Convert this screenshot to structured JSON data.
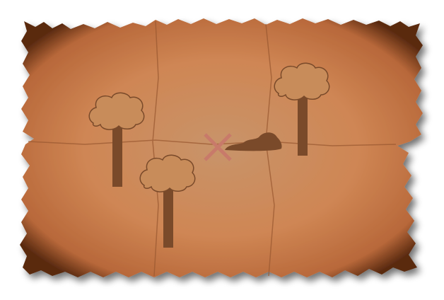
{
  "image": {
    "subject": "treasure-map",
    "colors": {
      "background": "#ffffff",
      "parchment_center": "#c8946a",
      "parchment_mid": "#cf8654",
      "parchment_edge": "#5a2a10",
      "fold_line": "#9b5a32",
      "shadow": "#9a9a9a",
      "tree_fill": "#c88c5a",
      "tree_stroke": "#7a4a2a",
      "trunk": "#7a4a2a",
      "rock": "#7a4a2a",
      "x_mark": "#c87a6a"
    },
    "icons": {
      "treasure_mark": "x-mark-icon",
      "landmarks": [
        "tree-icon",
        "tree-icon",
        "tree-icon"
      ],
      "rock": "rock-icon"
    }
  }
}
